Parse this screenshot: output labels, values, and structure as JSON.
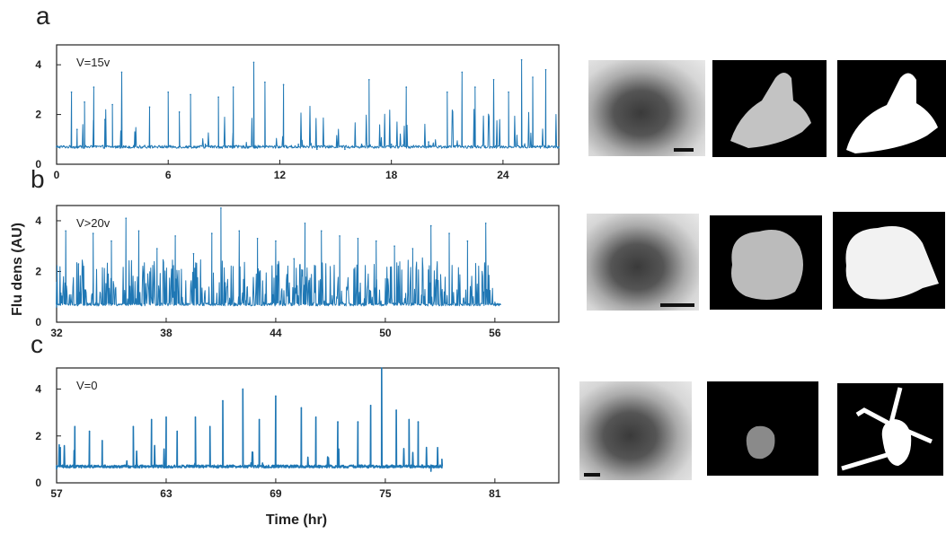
{
  "panels": [
    {
      "letter": "a",
      "condition": "V=15v",
      "xticks": [
        "0",
        "6",
        "12",
        "18",
        "24"
      ],
      "yticks": [
        "4",
        "2",
        "0"
      ]
    },
    {
      "letter": "b",
      "condition": "V>20v",
      "xticks": [
        "32",
        "38",
        "44",
        "50",
        "56"
      ],
      "yticks": [
        "4",
        "2",
        "0"
      ]
    },
    {
      "letter": "c",
      "condition": "V=0",
      "xticks": [
        "57",
        "63",
        "69",
        "75",
        "81"
      ],
      "yticks": [
        "4",
        "2",
        "0"
      ]
    }
  ],
  "ylabel": "Flu dens (AU)",
  "xlabel": "Time (hr)",
  "colors": {
    "trace": "#1f77b4",
    "axis": "#222222"
  },
  "chart_data": [
    {
      "type": "line",
      "title": "",
      "condition": "V=15v",
      "xlim": [
        0,
        27
      ],
      "ylim": [
        0,
        4.8
      ],
      "xlabel": "",
      "ylabel": "Flu dens (AU)",
      "grid": false,
      "series": [
        {
          "x": [
            0,
            0.8,
            1.1,
            1.5,
            2,
            2.6,
            3,
            3.5,
            4.2,
            5,
            6,
            6.6,
            7.2,
            8,
            8.7,
            9.5,
            10.6,
            11.2,
            12.2,
            13,
            14,
            15.5,
            16.4,
            16.8,
            18,
            18.8,
            20,
            21,
            21.8,
            22.5,
            23.5,
            24.3,
            25,
            25.6,
            26.3,
            27
          ],
          "y": [
            0.7,
            2.9,
            1.4,
            2.5,
            3.1,
            1.8,
            2.4,
            3.7,
            0.8,
            2.3,
            2.9,
            2.1,
            2.8,
            0.8,
            2.7,
            3.1,
            4.1,
            3.3,
            3.2,
            0.8,
            0.6,
            0.6,
            0.8,
            3.4,
            0.8,
            3.1,
            0.9,
            2.9,
            3.7,
            3.1,
            3.4,
            2.9,
            4.2,
            3.5,
            3.8,
            0.7
          ]
        }
      ]
    },
    {
      "type": "line",
      "title": "",
      "condition": "V>20v",
      "xlim": [
        32,
        59.5
      ],
      "ylim": [
        0,
        4.6
      ],
      "xlabel": "",
      "ylabel": "Flu dens (AU)",
      "grid": false,
      "series": [
        {
          "x": [
            32,
            32.5,
            33.2,
            34,
            35,
            35.8,
            36.5,
            37.5,
            38.5,
            39.5,
            40.5,
            41,
            42,
            43,
            44,
            45,
            45.6,
            46.5,
            47.5,
            48.5,
            49.5,
            50.5,
            51.5,
            52.5,
            53.5,
            54.5,
            55.5,
            56.3
          ],
          "y": [
            0.6,
            3.6,
            2.3,
            3.5,
            3.2,
            4.1,
            3.6,
            2.9,
            3.4,
            2.7,
            3.5,
            4.5,
            3.6,
            3.3,
            3.2,
            2.5,
            3.9,
            3.6,
            3.4,
            3.3,
            3.2,
            3.0,
            2.9,
            3.8,
            3.5,
            3.2,
            3.9,
            0.7
          ]
        }
      ]
    },
    {
      "type": "line",
      "title": "",
      "condition": "V=0",
      "xlim": [
        57,
        84.5
      ],
      "ylim": [
        0,
        4.9
      ],
      "xlabel": "Time (hr)",
      "ylabel": "Flu dens (AU)",
      "grid": false,
      "series": [
        {
          "x": [
            57,
            57.2,
            58,
            58.8,
            59.5,
            60.5,
            61.2,
            62.2,
            63,
            63.6,
            64.6,
            65.4,
            66.1,
            67.2,
            68.1,
            69,
            70.4,
            71.2,
            72.4,
            73.5,
            74.2,
            74.8,
            75.6,
            76.3,
            76.8,
            77.5,
            78.1
          ],
          "y": [
            0.6,
            1.5,
            2.4,
            2.2,
            1.8,
            0.7,
            2.4,
            2.7,
            2.8,
            2.2,
            2.8,
            2.4,
            3.5,
            4.0,
            2.7,
            3.7,
            3.2,
            2.8,
            2.6,
            2.6,
            3.3,
            4.9,
            3.1,
            2.7,
            2.6,
            0.5,
            1.0
          ]
        }
      ]
    }
  ],
  "micrographs": [
    {
      "panel": "a",
      "images": [
        "brightfield",
        "fluorescence",
        "fluorescence-bright"
      ]
    },
    {
      "panel": "b",
      "images": [
        "brightfield",
        "fluorescence",
        "fluorescence-bright"
      ]
    },
    {
      "panel": "c",
      "images": [
        "brightfield",
        "fluorescence",
        "fluorescence-bright"
      ]
    }
  ]
}
